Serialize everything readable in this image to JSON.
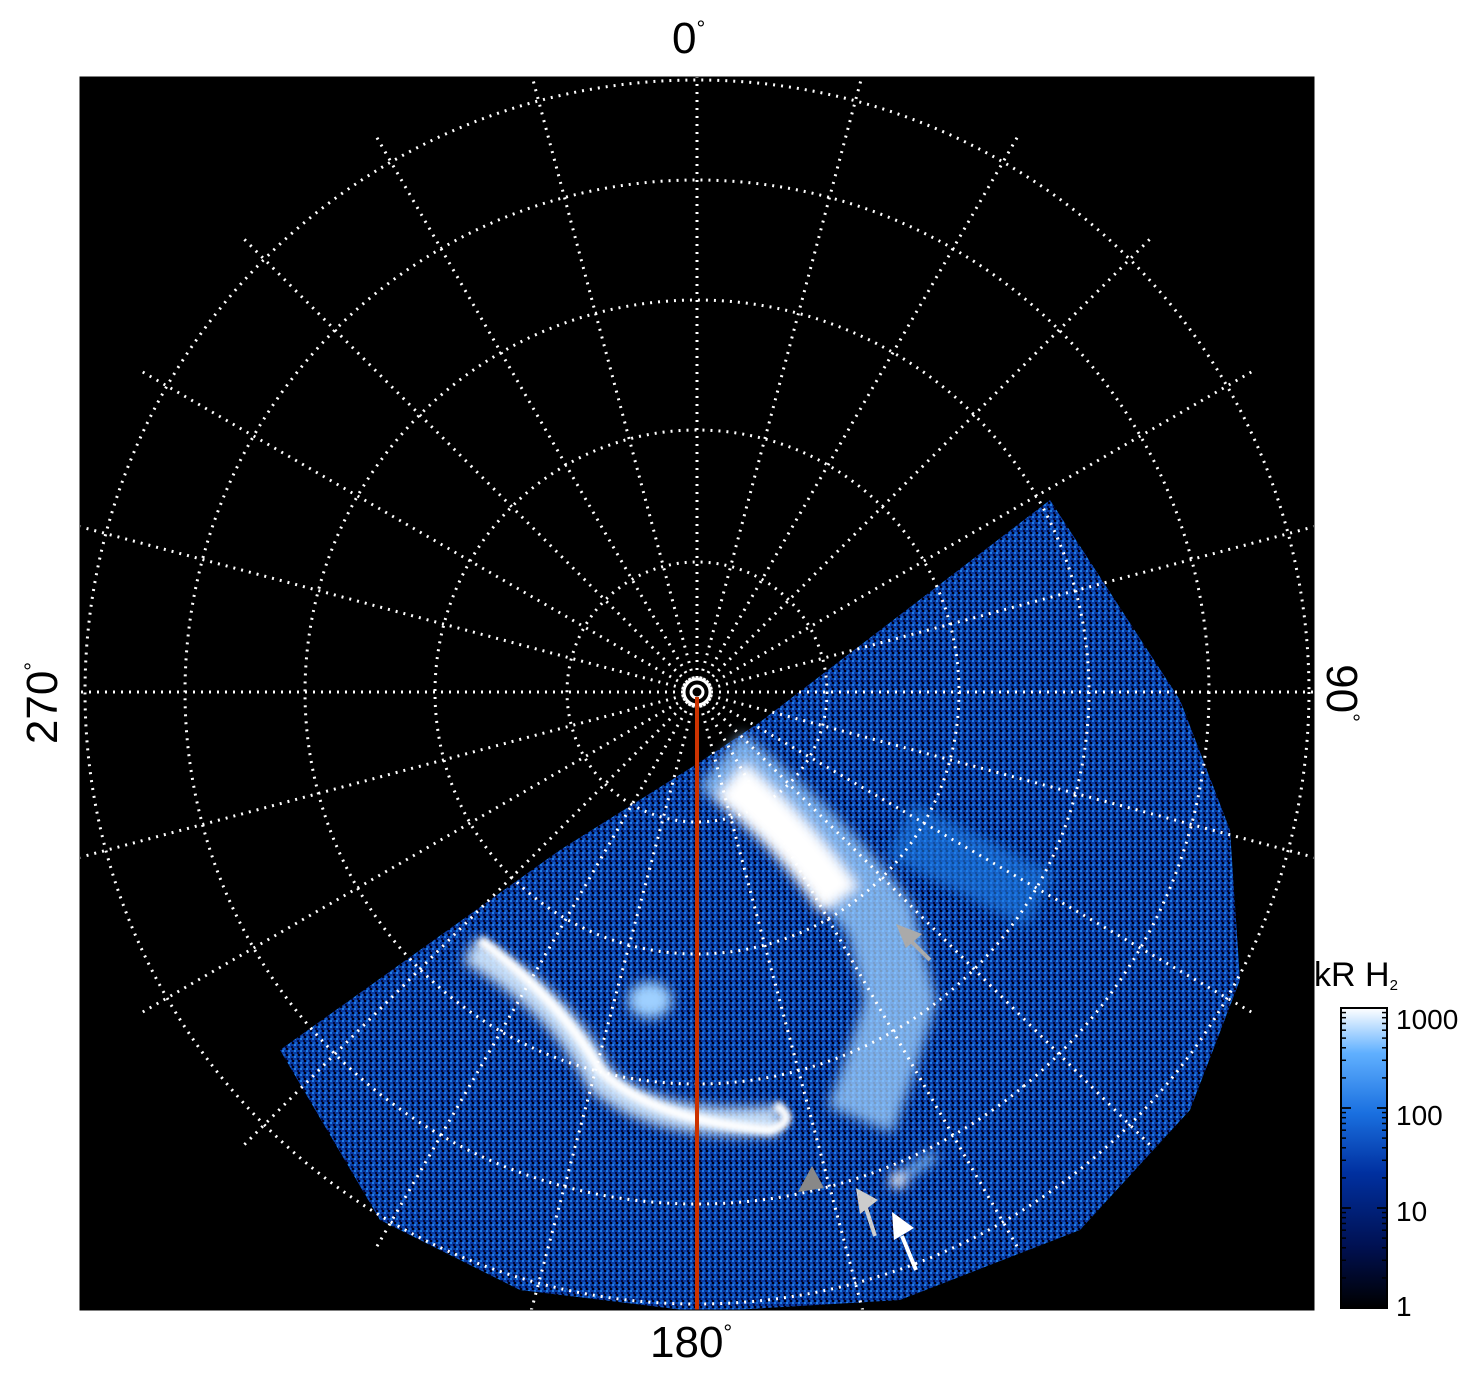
{
  "plot": {
    "axis_labels": {
      "top": {
        "value": "0",
        "unit": "°"
      },
      "right": {
        "value": "90",
        "unit": "°"
      },
      "bottom": {
        "value": "180",
        "unit": "°"
      },
      "left": {
        "value": "270",
        "unit": "°"
      }
    },
    "grid_style": "dotted-white",
    "center_marker": "ring-icon",
    "reference_line_color": "#cc3300",
    "background_color": "#000000",
    "emission_colors": [
      "#020a40",
      "#0a3aa0",
      "#1f7fe6",
      "#7fc4ff",
      "#ffffff"
    ],
    "arrow_icons": [
      {
        "name": "arrow-icon",
        "color": "#aaaaaa"
      },
      {
        "name": "arrow-icon",
        "color": "#888888"
      },
      {
        "name": "arrow-icon",
        "color": "#cccccc"
      },
      {
        "name": "arrow-icon",
        "color": "#ffffff"
      }
    ]
  },
  "colorbar": {
    "title_main": "kR H",
    "title_sub": "2",
    "ticks": [
      "1000",
      "100",
      "10",
      "1"
    ],
    "gradient": [
      "#000000",
      "#001050",
      "#0030a0",
      "#1a70e0",
      "#60b0ff",
      "#ffffff"
    ]
  }
}
